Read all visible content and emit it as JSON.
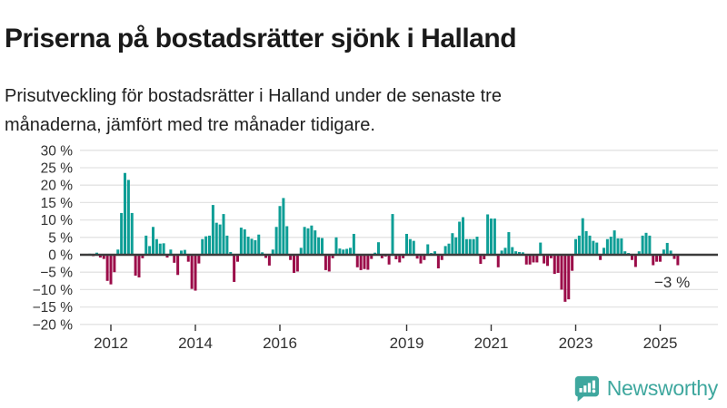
{
  "header": {
    "title": "Priserna på bostadsrätter sjönk i Halland",
    "subtitle": "Prisutveckling för bostadsrätter i Halland under de senaste tre månaderna, jämfört med tre månader tidigare."
  },
  "annotation": {
    "label": "−3 %"
  },
  "footer": {
    "brand": "Newsworthy",
    "brand_color": "#3ea79e"
  },
  "chart_data": {
    "type": "bar",
    "title": "Priserna på bostadsrätter sjönk i Halland",
    "subtitle": "Prisutveckling för bostadsrätter i Halland under de senaste tre månaderna, jämfört med tre månader tidigare.",
    "unit": "%",
    "xlabel": "",
    "ylabel": "",
    "ylim": [
      -20,
      30
    ],
    "grid": true,
    "legend": "none",
    "start_month": "2011-07",
    "end_month": "2025-06",
    "frequency": "monthly",
    "annotation": {
      "text": "−3 %",
      "value": -3
    },
    "colors": {
      "positive": "#0e9e96",
      "negative": "#9b0c49",
      "grid": "#e3e3e3",
      "zero_line": "#3c3c3c",
      "axis_text": "#303030"
    },
    "y_ticks": {
      "values": [
        30,
        25,
        20,
        15,
        10,
        5,
        0,
        -5,
        -10,
        -15,
        -20
      ],
      "labels": [
        "30 %",
        "25 %",
        "20 %",
        "15 %",
        "10 %",
        "5 %",
        "0 %",
        "−5 %",
        "−10 %",
        "−15 %",
        "−20 %"
      ]
    },
    "x_ticks": [
      2012,
      2014,
      2016,
      2019,
      2021,
      2023,
      2025
    ],
    "values": [
      0.3,
      -0.4,
      0.6,
      -0.8,
      -1.2,
      -7.5,
      -8.5,
      -5.0,
      1.5,
      12.0,
      23.5,
      21.5,
      12.0,
      -6.0,
      -6.5,
      -1.0,
      5.5,
      2.5,
      8.0,
      4.5,
      3.2,
      3.3,
      -0.8,
      1.5,
      -2.3,
      -5.8,
      1.2,
      1.4,
      -2.0,
      -9.8,
      -10.3,
      -2.5,
      4.5,
      5.3,
      5.5,
      14.3,
      9.2,
      8.7,
      11.7,
      5.5,
      0.8,
      -7.8,
      -2.0,
      7.8,
      7.3,
      5.2,
      4.6,
      4.2,
      5.8,
      0.7,
      -0.9,
      -3.1,
      1.5,
      8.0,
      14.0,
      16.3,
      8.2,
      -1.5,
      -5.2,
      -4.8,
      2.0,
      8.0,
      7.6,
      8.4,
      7.0,
      5.0,
      4.8,
      -4.4,
      -4.8,
      -1.0,
      5.0,
      1.8,
      1.5,
      1.7,
      2.0,
      6.0,
      -3.6,
      -4.4,
      -4.1,
      -4.3,
      -1.2,
      0.6,
      3.6,
      -1.0,
      -0.5,
      -2.8,
      11.7,
      -1.3,
      -2.2,
      -1.0,
      6.0,
      4.5,
      4.0,
      -1.1,
      -2.5,
      -1.5,
      3.0,
      0.5,
      1.0,
      -3.9,
      -1.5,
      2.5,
      3.2,
      6.2,
      5.0,
      9.5,
      10.8,
      4.5,
      4.5,
      4.5,
      5.2,
      -2.6,
      -1.3,
      11.6,
      10.4,
      10.4,
      -3.6,
      1.2,
      2.0,
      6.5,
      2.2,
      1.0,
      0.8,
      0.7,
      -2.8,
      -2.8,
      -2.2,
      -2.2,
      3.5,
      -2.5,
      -3.2,
      -1.0,
      -5.5,
      -5.2,
      -10.0,
      -13.5,
      -12.8,
      -4.6,
      4.5,
      5.5,
      10.5,
      6.8,
      5.5,
      4.0,
      3.5,
      -1.5,
      2.0,
      4.5,
      5.2,
      7.0,
      4.7,
      4.7,
      1.0,
      0.5,
      -1.5,
      -3.5,
      1.0,
      5.5,
      6.3,
      5.5,
      -3.0,
      -2.0,
      -2.0,
      1.5,
      3.4,
      1.2,
      -1.2,
      -3.0
    ]
  }
}
